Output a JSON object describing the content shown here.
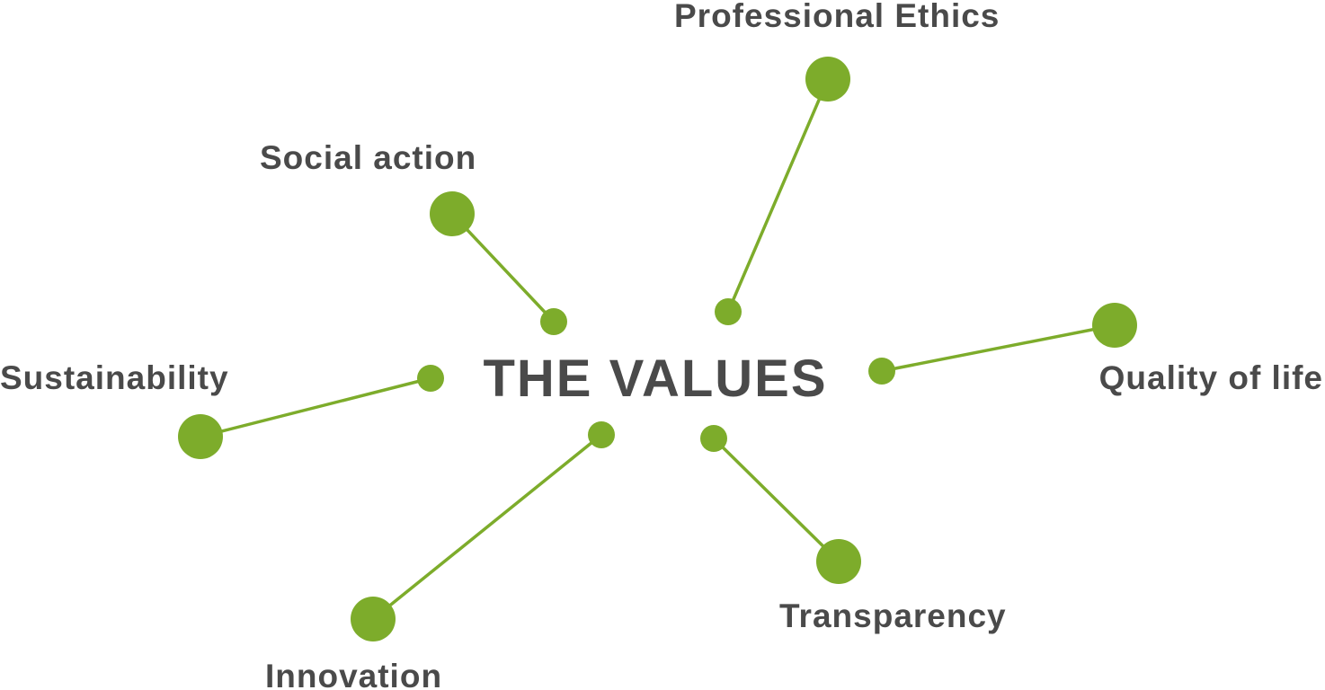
{
  "title": "THE VALUES",
  "colors": {
    "accent": "#7dac2b",
    "text": "#4a4a4a"
  },
  "values": [
    {
      "id": "professional-ethics",
      "label": "Professional Ethics"
    },
    {
      "id": "social-action",
      "label": "Social action"
    },
    {
      "id": "quality-of-life",
      "label": "Quality of life"
    },
    {
      "id": "sustainability",
      "label": "Sustainability"
    },
    {
      "id": "transparency",
      "label": "Transparency"
    },
    {
      "id": "innovation",
      "label": "Innovation"
    }
  ]
}
